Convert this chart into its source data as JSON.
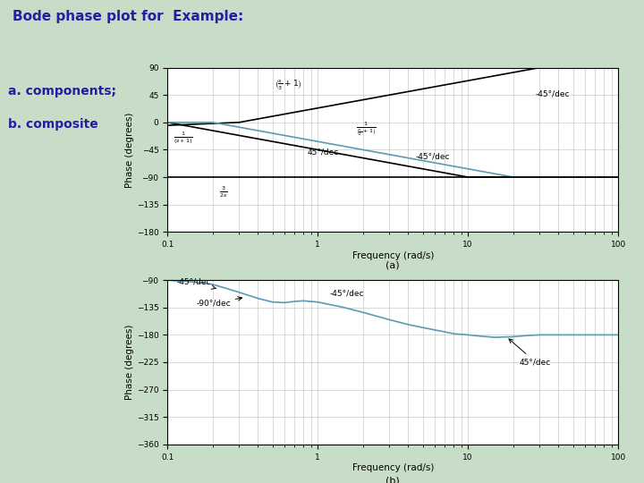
{
  "title": "Bode phase plot for  Example:",
  "subtitle_a": "a. components;",
  "subtitle_b": "b. composite",
  "background_color": "#c8ddc8",
  "plot_bg": "#ffffff",
  "grid_color": "#bbbbbb",
  "plot_a": {
    "yticks": [
      90,
      45,
      0,
      -45,
      -90,
      -135,
      -180
    ],
    "ylim": [
      -180,
      90
    ],
    "ylabel": "Phase (degrees)",
    "xlabel": "Frequency (rad/s)",
    "label": "(a)",
    "lines": [
      {
        "x": [
          0.1,
          0.3,
          3.0,
          30,
          100
        ],
        "y": [
          -5,
          0,
          45,
          90,
          90
        ],
        "color": "#000000",
        "lw": 1.2
      },
      {
        "x": [
          0.1,
          0.1,
          10,
          100
        ],
        "y": [
          0,
          0,
          -90,
          -90
        ],
        "color": "#000000",
        "lw": 1.2
      },
      {
        "x": [
          0.1,
          0.2,
          20,
          100
        ],
        "y": [
          0,
          0,
          -90,
          -90
        ],
        "color": "#5b9ab5",
        "lw": 1.2
      },
      {
        "x": [
          0.1,
          100
        ],
        "y": [
          -90,
          -90
        ],
        "color": "#000000",
        "lw": 1.2
      }
    ]
  },
  "plot_b": {
    "yticks": [
      -90,
      -135,
      -180,
      -225,
      -270,
      -315,
      -360
    ],
    "ylim": [
      -360,
      -90
    ],
    "ylabel": "Phase (degrees)",
    "xlabel": "Frequency (rad/s)",
    "label": "(b)",
    "line_color": "#5b9ab5",
    "line_lw": 1.2,
    "composite_points": [
      [
        0.1,
        -90
      ],
      [
        0.15,
        -93
      ],
      [
        0.2,
        -97
      ],
      [
        0.25,
        -104
      ],
      [
        0.3,
        -110
      ],
      [
        0.4,
        -120
      ],
      [
        0.5,
        -126
      ],
      [
        0.6,
        -127
      ],
      [
        0.7,
        -125
      ],
      [
        0.8,
        -124
      ],
      [
        1.0,
        -126
      ],
      [
        1.5,
        -135
      ],
      [
        2.0,
        -143
      ],
      [
        3.0,
        -155
      ],
      [
        4.0,
        -163
      ],
      [
        5.0,
        -168
      ],
      [
        7.0,
        -175
      ],
      [
        8.0,
        -178
      ],
      [
        10.0,
        -180
      ],
      [
        12.0,
        -182
      ],
      [
        15.0,
        -184
      ],
      [
        20.0,
        -183
      ],
      [
        25.0,
        -181
      ],
      [
        30.0,
        -180
      ],
      [
        40.0,
        -180
      ],
      [
        50.0,
        -180
      ],
      [
        100.0,
        -180
      ]
    ]
  }
}
